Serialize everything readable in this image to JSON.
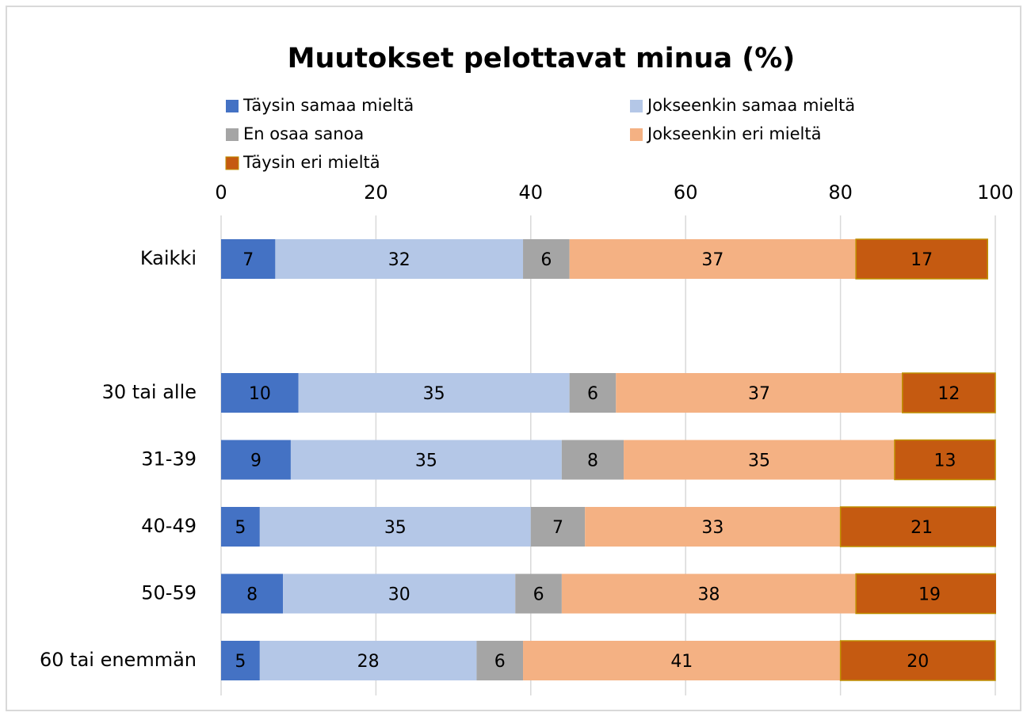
{
  "chart_data": {
    "type": "bar",
    "orientation": "horizontal",
    "stacked": true,
    "title": "Muutokset pelottavat minua (%)",
    "categories": [
      "Kaikki",
      null,
      "30 tai alle",
      "31-39",
      "40-49",
      "50-59",
      "60 tai enemmän"
    ],
    "series": [
      {
        "name": "Täysin samaa mieltä",
        "color": "#4472c4",
        "values": [
          7,
          null,
          10,
          9,
          5,
          8,
          5
        ]
      },
      {
        "name": "Jokseenkin samaa mieltä",
        "color": "#b4c7e7",
        "values": [
          32,
          null,
          35,
          35,
          35,
          30,
          28
        ]
      },
      {
        "name": "En osaa sanoa",
        "color": "#a5a5a5",
        "values": [
          6,
          null,
          6,
          8,
          7,
          6,
          6
        ]
      },
      {
        "name": "Jokseenkin eri mieltä",
        "color": "#f4b183",
        "values": [
          37,
          null,
          37,
          35,
          33,
          38,
          41
        ]
      },
      {
        "name": "Täysin eri mieltä",
        "color": "#c55a11",
        "values": [
          17,
          null,
          12,
          13,
          21,
          19,
          20
        ]
      }
    ],
    "xlim": [
      0,
      100
    ],
    "xticks": [
      0,
      20,
      40,
      60,
      80,
      100
    ],
    "grid": true,
    "legend": "top"
  }
}
